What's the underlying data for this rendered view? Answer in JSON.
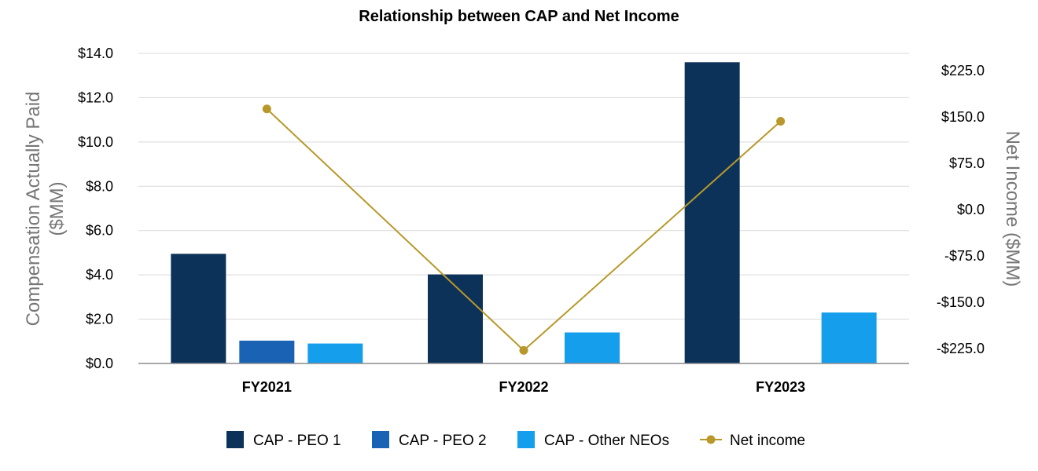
{
  "chart_data": {
    "type": "bar",
    "title": "Relationship between CAP and Net Income",
    "categories": [
      "FY2021",
      "FY2022",
      "FY2023"
    ],
    "ylabel": "Compensation Actually Paid ($MM)",
    "ylabel_lines": [
      "Compensation Actually Paid",
      "($MM)"
    ],
    "y2label": "Net Income ($MM)",
    "ylim": [
      0,
      14
    ],
    "y2lim": [
      -250,
      250
    ],
    "yticks": [
      0,
      2,
      4,
      6,
      8,
      10,
      12,
      14
    ],
    "ytick_labels": [
      "$0.0",
      "$2.0",
      "$4.0",
      "$6.0",
      "$8.0",
      "$10.0",
      "$12.0",
      "$14.0"
    ],
    "y2ticks": [
      -225,
      -150,
      -75,
      0,
      75,
      150,
      225
    ],
    "y2tick_labels": [
      "-$225.0",
      "-$150.0",
      "-$75.0",
      "$0.0",
      "$75.0",
      "$150.0",
      "$225.0"
    ],
    "grid": true,
    "legend_position": "bottom",
    "series": [
      {
        "name": "CAP - PEO 1",
        "kind": "bar",
        "axis": "left",
        "color": "#0c3259",
        "values": [
          4.95,
          4.02,
          13.6
        ]
      },
      {
        "name": "CAP - PEO 2",
        "kind": "bar",
        "axis": "left",
        "color": "#1a62b3",
        "values": [
          1.03,
          0,
          0
        ]
      },
      {
        "name": "CAP - Other NEOs",
        "kind": "bar",
        "axis": "left",
        "color": "#149eeb",
        "values": [
          0.9,
          1.4,
          2.3
        ]
      },
      {
        "name": "Net income",
        "kind": "line",
        "axis": "right",
        "color": "#b8982a",
        "values": [
          163,
          -228,
          143
        ]
      }
    ]
  }
}
